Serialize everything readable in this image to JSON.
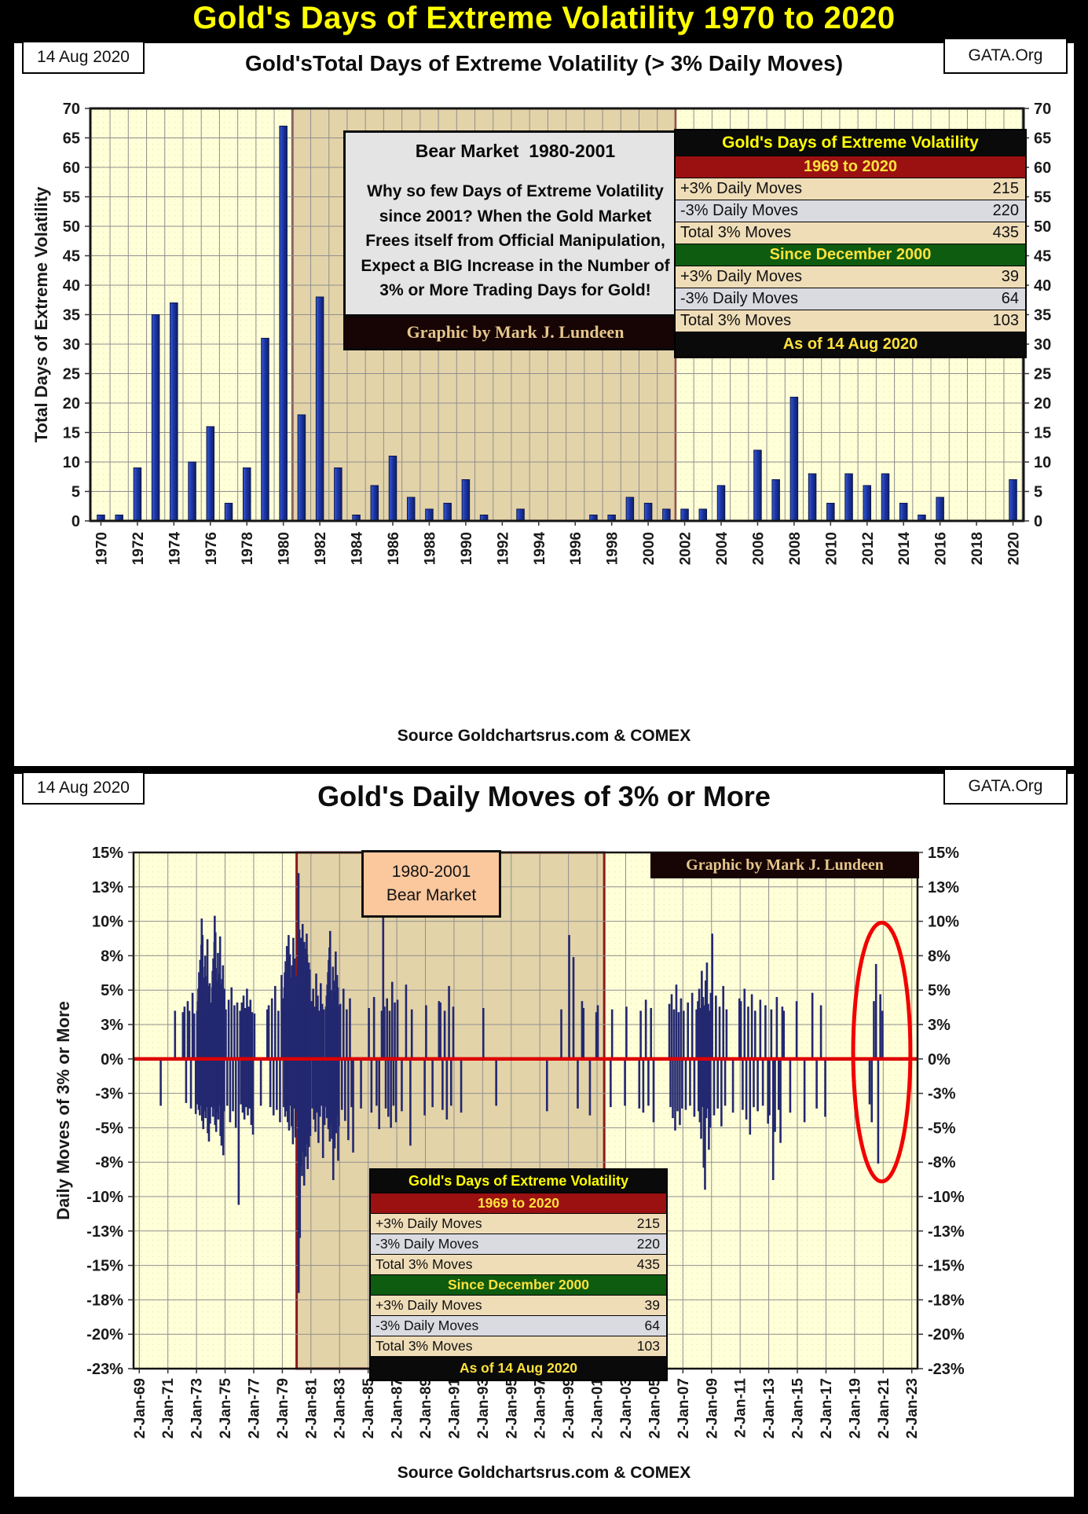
{
  "main_title": "Gold's Days of Extreme Volatility 1970 to 2020",
  "colors": {
    "title_yellow": "#ffff00",
    "bar_blue": "#1631a3",
    "spike_navy": "#232870",
    "plot_bg": "#ffffd8",
    "bear_region_bg": "#e3d3a8",
    "bear_region_border": "#8b1a1a",
    "zero_line_red": "#dd0000",
    "ellipse_red": "#f10000",
    "table_red_band": "#9b1111",
    "table_green_band": "#0e5c10"
  },
  "top_chart": {
    "date_label": "14 Aug 2020",
    "brand_label": "GATA.Org",
    "title": "Gold'sTotal Days of Extreme Volatility (> 3% Daily Moves)",
    "source": "Source Goldchartsrus.com & COMEX",
    "annotation": {
      "title": "Bear Market  1980-2001",
      "body": "Why so few Days of Extreme Volatility since 2001?  When the Gold Market Frees itself from Official Manipulation, Expect a BIG Increase in the Number of 3% or More Trading Days for Gold!",
      "credit": "Graphic by Mark J. Lundeen"
    }
  },
  "bottom_chart": {
    "date_label": "14 Aug 2020",
    "brand_label": "GATA.Org",
    "title": "Gold's Daily Moves of 3% or More",
    "source": "Source Goldchartsrus.com & COMEX",
    "annotation": {
      "line1": "1980-2001",
      "line2": "Bear Market"
    },
    "credit": "Graphic by Mark J. Lundeen"
  },
  "volatility_table": {
    "title": "Gold's Days of Extreme Volatility",
    "sections": [
      {
        "header": "1969 to 2020",
        "header_bg": "#9b1111",
        "rows": [
          [
            "+3% Daily Moves",
            "215"
          ],
          [
            "-3% Daily Moves",
            "220"
          ],
          [
            "Total 3% Moves",
            "435"
          ]
        ]
      },
      {
        "header": "Since December 2000",
        "header_bg": "#0e5c10",
        "rows": [
          [
            "+3% Daily Moves",
            "39"
          ],
          [
            "-3% Daily Moves",
            "64"
          ],
          [
            "Total 3% Moves",
            "103"
          ]
        ]
      }
    ],
    "footer": "As of 14 Aug 2020"
  },
  "chart_data": [
    {
      "type": "bar",
      "title": "Gold'sTotal Days of Extreme Volatility (> 3% Daily Moves)",
      "xlabel": "",
      "ylabel": "Total Days of Extreme Volatility",
      "ylim": [
        0,
        70
      ],
      "ytick_step": 5,
      "x_range": [
        1969.42,
        2020.58
      ],
      "xlabel_step": 2,
      "grid": true,
      "legend": "none",
      "bear_market_region": {
        "from": 1980.5,
        "to": 2001.5,
        "label": "Bear Market 1980-2001"
      },
      "categories": [
        1970,
        1971,
        1972,
        1973,
        1974,
        1975,
        1976,
        1977,
        1978,
        1979,
        1980,
        1981,
        1982,
        1983,
        1984,
        1985,
        1986,
        1987,
        1988,
        1989,
        1990,
        1991,
        1992,
        1993,
        1994,
        1995,
        1996,
        1997,
        1998,
        1999,
        2000,
        2001,
        2002,
        2003,
        2004,
        2005,
        2006,
        2007,
        2008,
        2009,
        2010,
        2011,
        2012,
        2013,
        2014,
        2015,
        2016,
        2017,
        2018,
        2019,
        2020
      ],
      "values": [
        1,
        1,
        9,
        35,
        37,
        10,
        16,
        3,
        9,
        31,
        67,
        18,
        38,
        9,
        1,
        6,
        11,
        4,
        2,
        3,
        7,
        1,
        0,
        2,
        0,
        0,
        0,
        1,
        1,
        4,
        3,
        2,
        2,
        2,
        6,
        0,
        12,
        7,
        21,
        8,
        3,
        8,
        6,
        8,
        3,
        1,
        4,
        0,
        0,
        0,
        7
      ]
    },
    {
      "type": "bar",
      "title": "Gold's Daily Moves of 3% or More",
      "xlabel": "",
      "ylabel": "Daily Moves of 3%  or More",
      "ylim": [
        -22.5,
        15
      ],
      "x_range": [
        1968.6,
        2023.4
      ],
      "grid": true,
      "legend": "none",
      "zero_line_color": "#dd0000",
      "xtick_label_prefix": "2-Jan-",
      "xtick_years": [
        1969,
        1971,
        1973,
        1975,
        1977,
        1979,
        1981,
        1983,
        1985,
        1987,
        1989,
        1991,
        1993,
        1995,
        1997,
        1999,
        2001,
        2003,
        2005,
        2007,
        2009,
        2011,
        2013,
        2015,
        2017,
        2019,
        2021,
        2023
      ],
      "yticks": [
        {
          "label": "15%",
          "v": 15
        },
        {
          "label": "13%",
          "v": 12.5
        },
        {
          "label": "10%",
          "v": 10
        },
        {
          "label": "8%",
          "v": 7.5
        },
        {
          "label": "5%",
          "v": 5
        },
        {
          "label": "3%",
          "v": 2.5
        },
        {
          "label": "0%",
          "v": 0
        },
        {
          "label": "-3%",
          "v": -2.5
        },
        {
          "label": "-5%",
          "v": -5
        },
        {
          "label": "-8%",
          "v": -7.5
        },
        {
          "label": "-10%",
          "v": -10
        },
        {
          "label": "-13%",
          "v": -12.5
        },
        {
          "label": "-15%",
          "v": -15
        },
        {
          "label": "-18%",
          "v": -17.5
        },
        {
          "label": "-20%",
          "v": -20
        },
        {
          "label": "-23%",
          "v": -22.5
        }
      ],
      "bear_market_region": {
        "from": 1980.0,
        "to": 2001.5,
        "label": "1980-2001 Bear Market"
      },
      "highlight_ellipse": {
        "center_year": 2020.9,
        "center_value": 0.5,
        "radius_years": 2.0,
        "radius_value": 9.4,
        "color": "#f10000"
      },
      "spikes_by_year": {
        "1970": [
          -3.4
        ],
        "1971": [
          3.5
        ],
        "1972": [
          3.4,
          3.8,
          -3.2,
          4.2,
          3.5,
          -3.6,
          4.8,
          3.3,
          -4.0
        ],
        "1973": [
          3.5,
          -3.3,
          4.2,
          5.1,
          -3.7,
          6.3,
          4.5,
          -4.1,
          7.2,
          5.6,
          -3.4,
          8.3,
          10.2,
          -4.5,
          9.0,
          6.7,
          -5.1,
          4.8,
          3.6,
          -3.8,
          5.9,
          7.5,
          -4.3,
          6.0,
          3.3,
          -3.5,
          4.7,
          8.7,
          -5.4,
          5.3,
          4.0,
          -6.0,
          3.8,
          5.5,
          -4.7
        ],
        "1974": [
          4.1,
          -3.5,
          5.2,
          6.4,
          -4.2,
          7.3,
          5.0,
          -3.6,
          8.5,
          10.4,
          -4.8,
          9.2,
          6.6,
          -5.3,
          4.6,
          3.7,
          -3.9,
          5.7,
          7.7,
          -4.4,
          6.2,
          3.5,
          -3.4,
          4.9,
          8.9,
          -5.6,
          5.4,
          4.2,
          -6.3,
          3.9,
          5.8,
          -4.9,
          6.8,
          -7.0,
          4.4,
          -3.8,
          5.1
        ],
        "1975": [
          3.6,
          -3.4,
          4.3,
          -4.6,
          5.2,
          -3.8,
          3.9,
          -5.0,
          4.1,
          -10.6
        ],
        "1976": [
          3.5,
          -3.3,
          4.1,
          -3.9,
          4.6,
          -4.4,
          3.7,
          -3.5,
          5.1,
          -4.1,
          3.8,
          -3.6,
          4.3,
          -4.8,
          3.4,
          -5.5
        ],
        "1977": [
          3.3,
          -3.4,
          3.6
        ],
        "1978": [
          3.9,
          -3.5,
          4.4,
          -4.1,
          5.3,
          -3.7,
          3.5,
          -4.6,
          6.1
        ],
        "1979": [
          3.6,
          4.4,
          -3.5,
          5.2,
          6.3,
          -4.2,
          7.1,
          4.8,
          -3.8,
          8.2,
          5.5,
          -4.6,
          6.6,
          9.0,
          -5.2,
          4.1,
          7.6,
          -3.4,
          5.9,
          3.7,
          -4.9,
          6.8,
          4.5,
          -6.2,
          8.8,
          5.1,
          -3.6,
          7.3,
          4.2,
          -5.7,
          6.0
        ],
        "1980": [
          4.5,
          -3.8,
          5.6,
          6.8,
          -4.4,
          9.3,
          13.5,
          -17.0,
          8.2,
          -6.5,
          9.4,
          -5.2,
          7.1,
          -13.0,
          6.3,
          -4.9,
          5.8,
          -7.8,
          4.6,
          8.8,
          -5.5,
          7.4,
          -4.1,
          6.0,
          -8.5,
          5.2,
          -3.9,
          9.8,
          -6.8,
          4.3,
          7.9,
          -5.0,
          6.6,
          -4.5,
          5.4,
          -9.2,
          8.5,
          -5.9,
          4.8,
          7.2,
          -4.2,
          6.1,
          -7.1,
          5.0,
          -3.6,
          8.0,
          -6.2,
          4.4,
          9.1,
          -5.4,
          7.6,
          -4.7,
          5.9,
          -8.0,
          4.9,
          6.9,
          -5.7,
          3.8,
          -4.0,
          7.0,
          -6.4,
          5.3,
          -3.5,
          6.5,
          -4.8,
          4.1,
          -5.6
        ],
        "1981": [
          4.2,
          -3.6,
          5.1,
          -4.4,
          3.8,
          -5.3,
          6.2,
          -3.9,
          4.6,
          -6.1,
          3.5,
          -4.2,
          5.5,
          -3.4,
          4.0,
          -7.2,
          3.6,
          -4.8
        ],
        "1982": [
          3.8,
          -3.5,
          4.6,
          -4.3,
          5.4,
          -3.7,
          6.3,
          -5.1,
          7.2,
          -4.0,
          8.1,
          -6.0,
          9.3,
          -3.9,
          5.0,
          -4.7,
          3.6,
          -5.8,
          4.3,
          -3.4,
          6.7,
          -8.8,
          5.7,
          -4.5,
          3.5,
          -6.5,
          4.9,
          -3.8,
          7.8,
          -5.4,
          4.1,
          -4.1,
          6.1,
          -3.6,
          5.2,
          -7.4,
          3.9,
          -4.9
        ],
        "1983": [
          4.0,
          -3.7,
          5.1,
          -4.5,
          3.6,
          -5.9,
          4.4,
          -3.5,
          -6.8
        ],
        "1984": [
          -3.6
        ],
        "1985": [
          3.7,
          -3.9,
          4.5,
          -3.4,
          -5.1,
          3.5
        ],
        "1986": [
          11.7,
          3.8,
          -3.6,
          4.4,
          -4.2,
          3.5,
          -5.0,
          5.6,
          -3.4,
          4.1,
          -4.6
        ],
        "1987": [
          4.3,
          -3.8,
          5.4,
          -6.3
        ],
        "1988": [
          3.6,
          -4.1
        ],
        "1989": [
          3.9,
          -3.5,
          4.2
        ],
        "1990": [
          4.1,
          -3.7,
          3.5,
          -4.4,
          5.3,
          -3.4,
          3.8
        ],
        "1991": [
          -3.9
        ],
        "1993": [
          3.7,
          -3.4
        ],
        "1997": [
          -3.8
        ],
        "1998": [
          3.6
        ],
        "1999": [
          9.0,
          7.4,
          -3.6,
          4.2
        ],
        "2000": [
          3.7,
          -4.1,
          3.4
        ],
        "2001": [
          3.9,
          -3.5
        ],
        "2002": [
          3.6,
          -3.4
        ],
        "2003": [
          3.8,
          -3.6
        ],
        "2004": [
          3.5,
          -3.9,
          4.3,
          -3.4,
          3.7,
          -4.6
        ],
        "2006": [
          4.0,
          -3.5,
          4.7,
          -4.3,
          3.6,
          -5.2,
          5.4,
          -3.8,
          3.4,
          -4.8,
          4.4,
          -3.6
        ],
        "2007": [
          3.5,
          -3.7,
          4.1,
          -3.4,
          4.8,
          -4.2,
          3.6
        ],
        "2008": [
          4.2,
          -3.8,
          5.1,
          -4.6,
          3.7,
          -5.8,
          6.4,
          -3.5,
          4.5,
          -7.9,
          3.9,
          -9.5,
          5.7,
          -4.3,
          7.0,
          -3.6,
          4.0,
          -6.6,
          3.5,
          -5.0,
          4.8
        ],
        "2009": [
          9.1,
          -4.1,
          4.6,
          -3.6,
          3.8,
          -4.9,
          5.3,
          -3.4
        ],
        "2010": [
          3.6,
          -3.9,
          4.4
        ],
        "2011": [
          4.2,
          -3.7,
          5.1,
          -4.4,
          3.8,
          -5.5,
          4.7,
          -3.5
        ],
        "2012": [
          3.5,
          -3.8,
          4.3,
          -3.4,
          3.9,
          -4.7
        ],
        "2013": [
          -4.1,
          3.6,
          -8.8,
          -5.3,
          4.5,
          -3.7,
          -6.1,
          3.8
        ],
        "2014": [
          3.5,
          -3.9,
          4.2
        ],
        "2015": [
          -4.6
        ],
        "2016": [
          4.8,
          -3.6,
          3.9,
          -4.2
        ],
        "2020": [
          -3.3,
          -4.6,
          4.2,
          6.9,
          -7.6,
          4.7,
          3.5
        ]
      }
    }
  ]
}
